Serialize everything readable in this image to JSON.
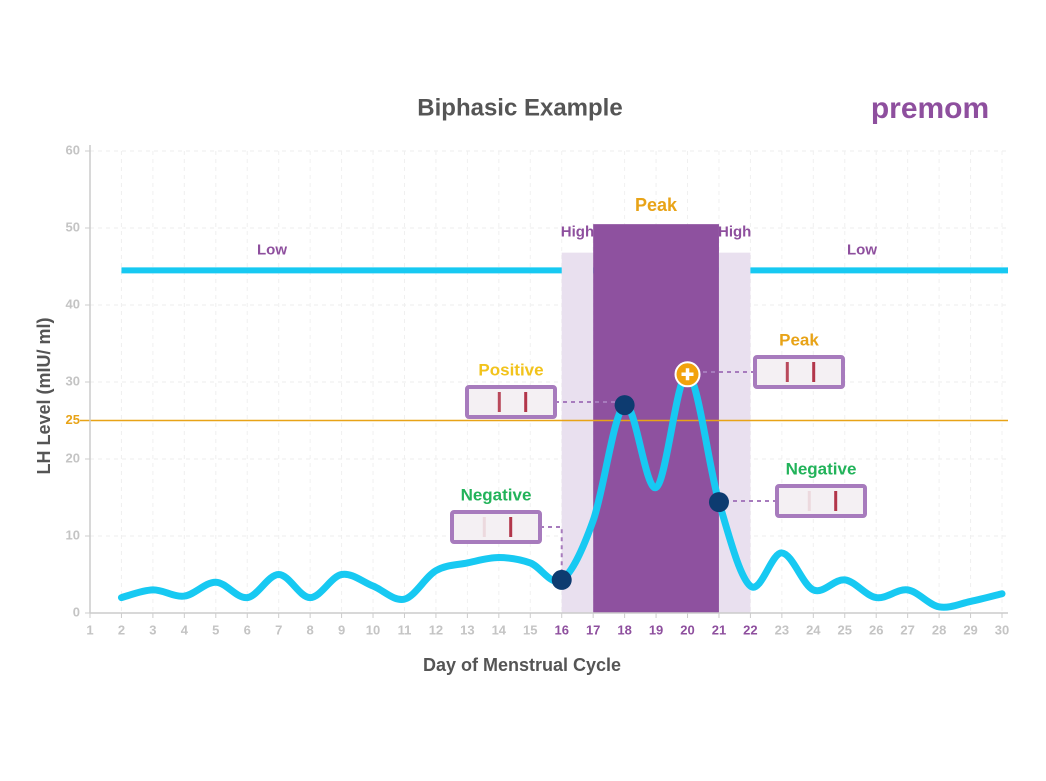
{
  "chart_data": {
    "type": "line",
    "title": "Biphasic Example",
    "brand": "premom",
    "x_label": "Day of Menstrual Cycle",
    "y_label": "LH Level (mIU/ ml)",
    "xlim": [
      1,
      30
    ],
    "xticks": [
      1,
      2,
      3,
      4,
      5,
      6,
      7,
      8,
      9,
      10,
      11,
      12,
      13,
      14,
      15,
      16,
      17,
      18,
      19,
      20,
      21,
      22,
      23,
      24,
      25,
      26,
      27,
      28,
      29,
      30
    ],
    "highlight_xticks": [
      16,
      22
    ],
    "ylim": [
      0,
      60
    ],
    "yticks": [
      0,
      10,
      20,
      30,
      40,
      50,
      60
    ],
    "grid": true,
    "x": [
      2,
      3,
      4,
      5,
      6,
      7,
      8,
      9,
      10,
      11,
      12,
      13,
      14,
      15,
      16,
      17,
      18,
      19,
      20,
      21,
      22,
      23,
      24,
      25,
      26,
      27,
      28,
      29,
      30
    ],
    "values": [
      2,
      3,
      2.2,
      4,
      2,
      5,
      2,
      5,
      3.5,
      1.8,
      5.5,
      6.5,
      7.2,
      6.5,
      4.3,
      12,
      27,
      16.3,
      31,
      14.4,
      3.5,
      7.8,
      3,
      4.3,
      2,
      3,
      0.8,
      1.5,
      2.5
    ],
    "color": "#17c9f2",
    "threshold": {
      "value": 25,
      "color": "#e8a317"
    },
    "baseline": {
      "value": 44.5,
      "xlim": [
        2,
        30
      ],
      "color": "#17c9f2",
      "labels": [
        "Low",
        "Low"
      ]
    },
    "phases": [
      {
        "label": "High",
        "start": 16,
        "end": 17,
        "top": 46.8,
        "color": "#e9e0ef",
        "label_color": "#8e4f9e"
      },
      {
        "label": "Peak",
        "start": 17,
        "end": 21,
        "top": 50.5,
        "color": "#8e519f",
        "label_color": "#e8a317"
      },
      {
        "label": "High",
        "start": 21,
        "end": 22,
        "top": 46.8,
        "color": "#e9e0ef",
        "label_color": "#8e4f9e"
      }
    ],
    "tests": [
      {
        "x": 16,
        "result": "Negative",
        "color": "#22b35a",
        "marker_color": "#0d3b70"
      },
      {
        "x": 18,
        "result": "Positive",
        "color": "#f2c31c",
        "marker_color": "#0d3b70"
      },
      {
        "x": 20,
        "result": "Peak",
        "color": "#e8a317",
        "marker_color": "#f2a20c"
      },
      {
        "x": 21,
        "result": "Negative",
        "color": "#22b35a",
        "marker_color": "#0d3b70"
      }
    ]
  }
}
